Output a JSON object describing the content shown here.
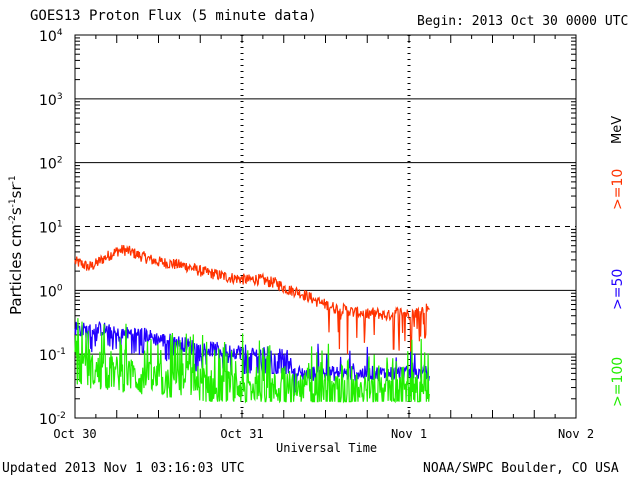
{
  "chart_data": {
    "type": "line",
    "title": "GOES13 Proton Flux (5 minute data)",
    "begin_label": "Begin: 2013 Oct 30 0000 UTC",
    "xlabel": "Universal Time",
    "ylabel_main": "Particles cm",
    "ylabel_exp1": "-2",
    "ylabel_s": "s",
    "ylabel_exp2": "-1",
    "ylabel_sr": "sr",
    "ylabel_exp3": "-1",
    "yscale": "log",
    "ylim": [
      0.01,
      10000
    ],
    "y_ticks": [
      {
        "value": 10000,
        "base": "10",
        "exp": "4"
      },
      {
        "value": 1000,
        "base": "10",
        "exp": "3"
      },
      {
        "value": 100,
        "base": "10",
        "exp": "2"
      },
      {
        "value": 10,
        "base": "10",
        "exp": "1"
      },
      {
        "value": 1,
        "base": "10",
        "exp": "0"
      },
      {
        "value": 0.1,
        "base": "10",
        "exp": "-1"
      },
      {
        "value": 0.01,
        "base": "10",
        "exp": "-2"
      }
    ],
    "xlim_hours": [
      0,
      72
    ],
    "x_ticks": [
      {
        "hours": 0,
        "label": "Oct 30"
      },
      {
        "hours": 24,
        "label": "Oct 31"
      },
      {
        "hours": 48,
        "label": "Nov 1"
      },
      {
        "hours": 72,
        "label": "Nov 2"
      }
    ],
    "threshold_line": 10,
    "series": [
      {
        "name": ">=10",
        "unit_label": "MeV",
        "color": "#ff3300",
        "points": [
          [
            0,
            2.8
          ],
          [
            1,
            2.6
          ],
          [
            2,
            2.3
          ],
          [
            3,
            2.6
          ],
          [
            4,
            3.1
          ],
          [
            5,
            3.6
          ],
          [
            6,
            4.1
          ],
          [
            7,
            4.3
          ],
          [
            8,
            4.0
          ],
          [
            9,
            3.6
          ],
          [
            10,
            3.3
          ],
          [
            11,
            3.0
          ],
          [
            12,
            2.8
          ],
          [
            13,
            2.7
          ],
          [
            14,
            2.6
          ],
          [
            15,
            2.5
          ],
          [
            16,
            2.4
          ],
          [
            17,
            2.2
          ],
          [
            18,
            2.0
          ],
          [
            19,
            1.9
          ],
          [
            20,
            1.8
          ],
          [
            21,
            1.7
          ],
          [
            22,
            1.6
          ],
          [
            23,
            1.55
          ],
          [
            24,
            1.5
          ],
          [
            25,
            1.45
          ],
          [
            26,
            1.5
          ],
          [
            27,
            1.45
          ],
          [
            28,
            1.35
          ],
          [
            29,
            1.3
          ],
          [
            30,
            1.1
          ],
          [
            31,
            1.0
          ],
          [
            32,
            0.95
          ],
          [
            33,
            0.85
          ],
          [
            34,
            0.75
          ],
          [
            35,
            0.65
          ],
          [
            36,
            0.6
          ],
          [
            37,
            0.55
          ],
          [
            38,
            0.5
          ],
          [
            39,
            0.5
          ],
          [
            40,
            0.45
          ],
          [
            41,
            0.45
          ],
          [
            42,
            0.42
          ],
          [
            43,
            0.45
          ],
          [
            44,
            0.42
          ],
          [
            45,
            0.4
          ],
          [
            46,
            0.45
          ],
          [
            47,
            0.45
          ],
          [
            48,
            0.42
          ],
          [
            49,
            0.45
          ],
          [
            50,
            0.5
          ],
          [
            51,
            0.55
          ]
        ],
        "dips": [
          [
            36.5,
            0.22
          ],
          [
            38,
            0.12
          ],
          [
            39.2,
            0.1
          ],
          [
            40.5,
            0.18
          ],
          [
            41.6,
            0.15
          ],
          [
            43,
            0.2
          ],
          [
            45.8,
            0.12
          ],
          [
            46.6,
            0.2
          ],
          [
            47.4,
            0.16
          ],
          [
            48.3,
            0.1
          ],
          [
            49.2,
            0.25
          ],
          [
            50.3,
            0.18
          ]
        ]
      },
      {
        "name": ">=50",
        "unit_label": "",
        "color": "#2200ff",
        "points": [
          [
            0,
            0.26
          ],
          [
            2,
            0.23
          ],
          [
            4,
            0.25
          ],
          [
            6,
            0.2
          ],
          [
            8,
            0.21
          ],
          [
            10,
            0.2
          ],
          [
            12,
            0.17
          ],
          [
            14,
            0.16
          ],
          [
            16,
            0.14
          ],
          [
            18,
            0.12
          ],
          [
            20,
            0.12
          ],
          [
            22,
            0.11
          ],
          [
            24,
            0.11
          ],
          [
            26,
            0.1
          ],
          [
            28,
            0.1
          ],
          [
            30,
            0.09
          ],
          [
            31,
            0.09
          ],
          [
            31.5,
            0.05
          ],
          [
            34,
            0.05
          ],
          [
            38,
            0.05
          ],
          [
            42,
            0.05
          ],
          [
            46,
            0.05
          ],
          [
            48,
            0.05
          ],
          [
            51,
            0.05
          ]
        ]
      },
      {
        "name": ">=100",
        "unit_label": "",
        "color": "#22ee00",
        "points": [
          [
            0,
            0.06
          ],
          [
            2,
            0.055
          ],
          [
            4,
            0.05
          ],
          [
            6,
            0.05
          ],
          [
            8,
            0.045
          ],
          [
            10,
            0.04
          ],
          [
            12,
            0.04
          ],
          [
            14,
            0.035
          ],
          [
            16,
            0.04
          ],
          [
            18,
            0.035
          ],
          [
            20,
            0.03
          ],
          [
            22,
            0.03
          ],
          [
            24,
            0.03
          ],
          [
            26,
            0.03
          ],
          [
            28,
            0.028
          ],
          [
            30,
            0.028
          ],
          [
            32,
            0.027
          ],
          [
            34,
            0.026
          ],
          [
            36,
            0.026
          ],
          [
            38,
            0.025
          ],
          [
            40,
            0.025
          ],
          [
            42,
            0.025
          ],
          [
            44,
            0.024
          ],
          [
            46,
            0.024
          ],
          [
            48,
            0.023
          ],
          [
            51,
            0.023
          ]
        ]
      }
    ]
  },
  "footer": {
    "updated": "Updated 2013 Nov  1 03:16:03 UTC",
    "source": "NOAA/SWPC Boulder, CO USA"
  }
}
